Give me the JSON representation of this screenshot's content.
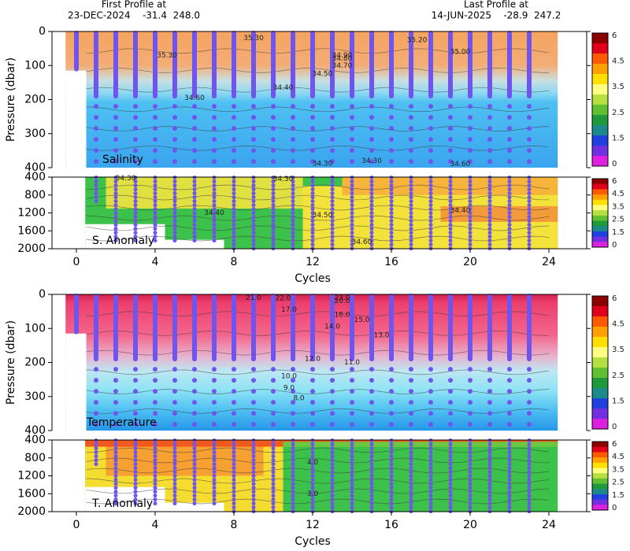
{
  "header": {
    "first_title": "First Profile at",
    "first_info": "23-DEC-2024    -31.4  248.0",
    "last_title": "Last Profile at",
    "last_info": "14-JUN-2025    -28.9  247.2"
  },
  "colorbar_colors": [
    "#8b0000",
    "#e0001a",
    "#ff5a00",
    "#ffa000",
    "#ffe000",
    "#ffff80",
    "#b4e040",
    "#60c030",
    "#1e9a3c",
    "#1a8a8a",
    "#2040e0",
    "#7030e0",
    "#e020e0"
  ],
  "chart_data": [
    {
      "type": "section",
      "label": "Salinity",
      "ylabel": "Pressure (dbar)",
      "ylim": [
        0,
        400
      ],
      "yticks": [
        0,
        100,
        200,
        300,
        400
      ],
      "xlim": [
        -1.24,
        25.92
      ],
      "x": [
        0,
        1,
        2,
        3,
        4,
        5,
        6,
        7,
        8,
        9,
        10,
        11,
        12,
        13,
        14,
        15,
        16,
        17,
        18,
        19,
        20,
        21,
        22,
        23
      ],
      "color": "#6f55ee",
      "colorbar_ticks": [
        6,
        4.5,
        3.5,
        2.5,
        1.5,
        0
      ],
      "contour_labels": [
        "35.30",
        "34.60",
        "34.50",
        "34.40",
        "34.30",
        "35.20",
        "35.00",
        "34.90",
        "34.80",
        "34.70",
        "35.30",
        "34.60",
        "34.30"
      ]
    },
    {
      "type": "section",
      "label": "S. Anomaly",
      "xlabel": "Cycles",
      "ylim": [
        400,
        2000
      ],
      "yticks": [
        400,
        800,
        1200,
        1600,
        2000
      ],
      "xlim": [
        -1.24,
        25.92
      ],
      "xticks": [
        0,
        4,
        8,
        12,
        16,
        20,
        24
      ],
      "x": [
        1,
        2,
        3,
        4,
        5,
        6,
        7,
        8,
        9,
        10,
        11,
        12,
        13,
        14,
        15,
        16,
        17,
        18,
        19,
        20,
        21,
        22,
        23
      ],
      "color": "#6f55ee",
      "colorbar_ticks": [
        6,
        4.5,
        3.5,
        2.5,
        1.5,
        0
      ],
      "contour_labels": [
        "34.30",
        "34.30",
        "34.40",
        "34.50",
        "34.40",
        "34.60"
      ]
    },
    {
      "type": "section",
      "label": "Temperature",
      "ylabel": "Pressure (dbar)",
      "ylim": [
        0,
        400
      ],
      "yticks": [
        0,
        100,
        200,
        300,
        400
      ],
      "xlim": [
        -1.24,
        25.92
      ],
      "x": [
        0,
        1,
        2,
        3,
        4,
        5,
        6,
        7,
        8,
        9,
        10,
        11,
        12,
        13,
        14,
        15,
        16,
        17,
        18,
        19,
        20,
        21,
        22,
        23
      ],
      "color": "#6f55ee",
      "colorbar_ticks": [
        6,
        4.5,
        3.5,
        2.5,
        1.5,
        0
      ],
      "contour_labels": [
        "21.0",
        "22.0",
        "23.0",
        "20.0",
        "17.0",
        "16.0",
        "15.0",
        "14.0",
        "13.0",
        "12.0",
        "11.0",
        "10.0",
        "9.0",
        "8.0"
      ]
    },
    {
      "type": "section",
      "label": "T. Anomaly",
      "xlabel": "Cycles",
      "ylim": [
        400,
        2000
      ],
      "yticks": [
        400,
        800,
        1200,
        1600,
        2000
      ],
      "xlim": [
        -1.24,
        25.92
      ],
      "xticks": [
        0,
        4,
        8,
        12,
        16,
        20,
        24
      ],
      "x": [
        1,
        2,
        3,
        4,
        5,
        6,
        7,
        8,
        9,
        10,
        11,
        12,
        13,
        14,
        15,
        16,
        17,
        18,
        19,
        20,
        21,
        22,
        23
      ],
      "color": "#6f55ee",
      "colorbar_ticks": [
        6,
        4.5,
        3.5,
        2.5,
        1.5,
        0
      ],
      "contour_labels": [
        "4.0",
        "3.0"
      ]
    }
  ]
}
